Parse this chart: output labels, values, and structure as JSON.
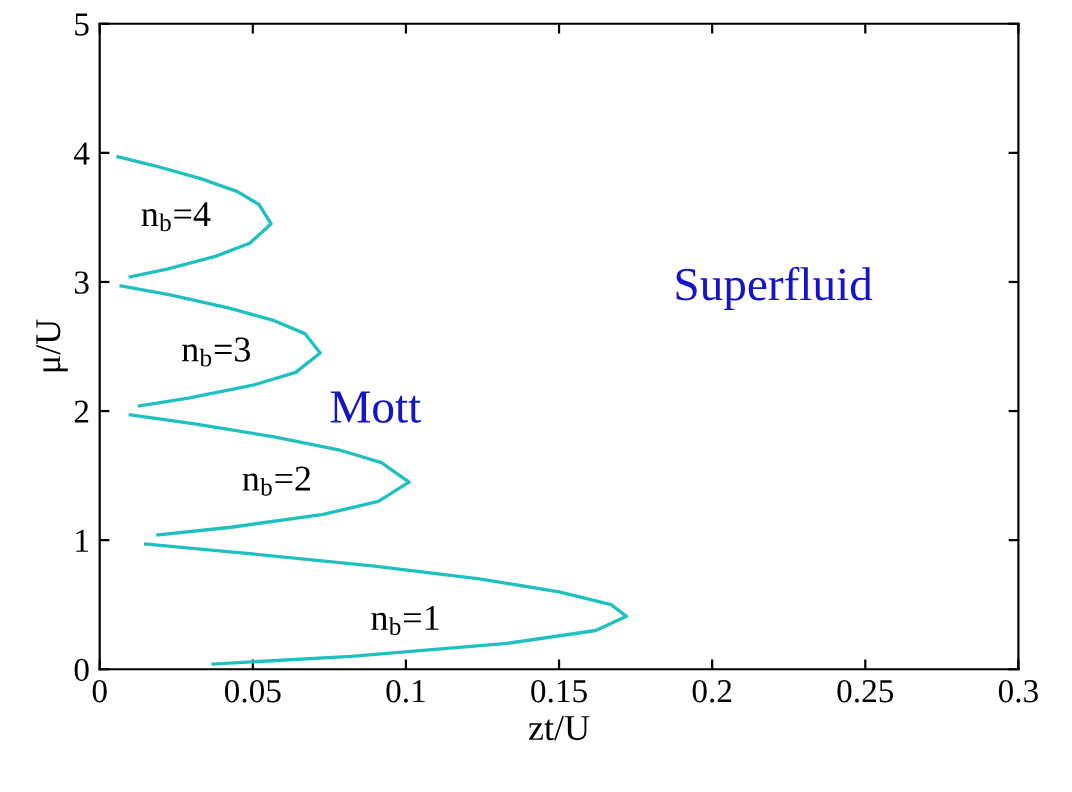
{
  "chart_data": {
    "type": "line",
    "xlabel": "zt/U",
    "ylabel": "μ/U",
    "xlim": [
      0,
      0.3
    ],
    "ylim": [
      0,
      5
    ],
    "xticks": [
      0,
      0.05,
      0.1,
      0.15,
      0.2,
      0.25,
      0.3
    ],
    "yticks": [
      0,
      1,
      2,
      3,
      4,
      5
    ],
    "grid": false,
    "legend": false,
    "marker": "none",
    "line_style": "solid",
    "series": [
      {
        "color": "#20c0c0",
        "x": [
          0.037,
          0.082,
          0.133,
          0.162,
          0.172,
          0.167,
          0.15,
          0.124,
          0.089,
          0.047,
          0.015
        ],
        "values": [
          0.04,
          0.1,
          0.2,
          0.3,
          0.41,
          0.5,
          0.6,
          0.7,
          0.8,
          0.9,
          0.97
        ]
      },
      {
        "color": "#20c0c0",
        "x": [
          0.019,
          0.043,
          0.073,
          0.091,
          0.101,
          0.092,
          0.078,
          0.057,
          0.031,
          0.01
        ],
        "values": [
          1.04,
          1.1,
          1.2,
          1.3,
          1.45,
          1.6,
          1.7,
          1.8,
          1.9,
          1.97
        ]
      },
      {
        "color": "#20c0c0",
        "x": [
          0.013,
          0.029,
          0.05,
          0.064,
          0.072,
          0.067,
          0.057,
          0.042,
          0.023,
          0.007
        ],
        "values": [
          2.04,
          2.1,
          2.2,
          2.3,
          2.45,
          2.6,
          2.7,
          2.8,
          2.9,
          2.97
        ]
      },
      {
        "color": "#20c0c0",
        "x": [
          0.01,
          0.022,
          0.038,
          0.049,
          0.056,
          0.052,
          0.045,
          0.033,
          0.018,
          0.006
        ],
        "values": [
          3.04,
          3.1,
          3.2,
          3.3,
          3.45,
          3.6,
          3.7,
          3.8,
          3.9,
          3.97
        ]
      }
    ],
    "annotations": [
      "n$_{b}$=1",
      "n$_{b}$=2",
      "n$_{b}$=3",
      "n$_{b}$=4",
      "Mott",
      "Superfluid"
    ]
  }
}
